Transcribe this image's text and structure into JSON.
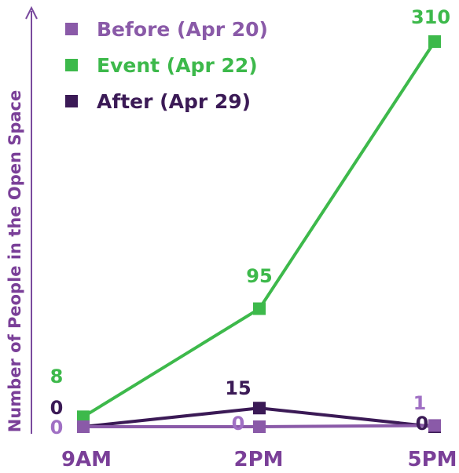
{
  "chart_data": {
    "type": "line",
    "title": "",
    "xlabel": "",
    "ylabel": "Number of People in the Open Space",
    "categories": [
      "9AM",
      "2PM",
      "5PM"
    ],
    "ylim": [
      0,
      320
    ],
    "grid": false,
    "legend_position": "top-left",
    "series": [
      {
        "name": "Before (Apr 20)",
        "values": [
          0,
          0,
          1
        ],
        "color": "#8a5aa8"
      },
      {
        "name": "Event (Apr 22)",
        "values": [
          8,
          95,
          310
        ],
        "color": "#3db94b"
      },
      {
        "name": "After (Apr 29)",
        "values": [
          0,
          15,
          0
        ],
        "color": "#3b1a56"
      }
    ]
  }
}
